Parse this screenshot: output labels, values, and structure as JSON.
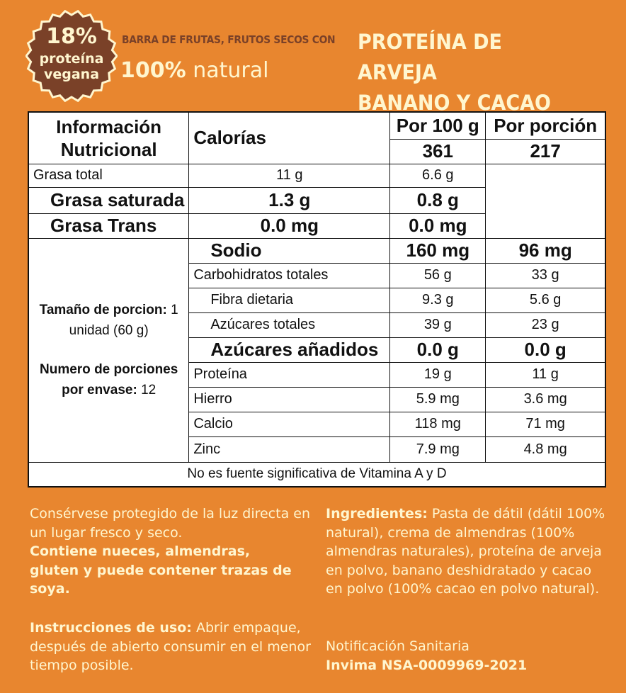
{
  "badge": {
    "line1": "18%",
    "line2": "proteína",
    "line3": "vegana"
  },
  "header": {
    "subtitle": "BARRA DE FRUTAS, FRUTOS SECOS CON",
    "natural_bold": "100%",
    "natural": "natural",
    "title_line1": "PROTEÍNA DE ARVEJA",
    "title_line2": "BANANO Y CACAO"
  },
  "colors": {
    "background": "#E8862F",
    "brown": "#7A4128",
    "cream": "#FFF6CF"
  },
  "table": {
    "title": "Información Nutricional",
    "calories_label": "Calorías",
    "col1": "Por 100 g",
    "col2": "Por porción",
    "calories": [
      "361",
      "217"
    ],
    "rows": [
      {
        "label": "Grasa total",
        "a": "11 g",
        "b": "6.6 g"
      },
      {
        "label": "Grasa saturada",
        "a": "1.3 g",
        "b": "0.8 g"
      },
      {
        "label": "Grasa Trans",
        "a": "0.0 mg",
        "b": "0.0 mg"
      },
      {
        "label": "Sodio",
        "a": "160 mg",
        "b": "96 mg"
      },
      {
        "label": "Carbohidratos totales",
        "a": "56 g",
        "b": "33 g"
      },
      {
        "label": "Fibra dietaria",
        "a": "9.3 g",
        "b": "5.6 g"
      },
      {
        "label": "Azúcares totales",
        "a": "39 g",
        "b": "23 g"
      },
      {
        "label": "Azúcares añadidos",
        "a": "0.0 g",
        "b": "0.0 g"
      },
      {
        "label": "Proteína",
        "a": "19 g",
        "b": "11 g"
      },
      {
        "label": "Hierro",
        "a": "5.9 mg",
        "b": "3.6 mg"
      },
      {
        "label": "Calcio",
        "a": "118 mg",
        "b": "71 mg"
      },
      {
        "label": "Zinc",
        "a": "7.9 mg",
        "b": "4.8 mg"
      }
    ],
    "serving_label": "Tamaño de porcion:",
    "serving_value": "1 unidad (60 g)",
    "servings_label": "Numero de porciones por envase:",
    "servings_value": "12",
    "footer": "No es fuente significativa de Vitamina A y D"
  },
  "storage": {
    "text": "Consérvese protegido de la luz directa en un lugar fresco y seco.",
    "allergens": "Contiene nueces, almendras, gluten y puede contener trazas de soya."
  },
  "instructions": {
    "label": "Instrucciones de uso:",
    "text": "Abrir empaque, después de abierto consumir en el menor tiempo posible."
  },
  "ingredients": {
    "label": "Ingredientes:",
    "text": "Pasta de dátil (dátil 100% natural), crema de almendras (100% almendras naturales), proteína de arveja en polvo, banano deshidratado y cacao en polvo (100% cacao en polvo natural)."
  },
  "sanitary": {
    "label": "Notificación Sanitaria",
    "code": "Invima NSA-0009969-2021"
  }
}
